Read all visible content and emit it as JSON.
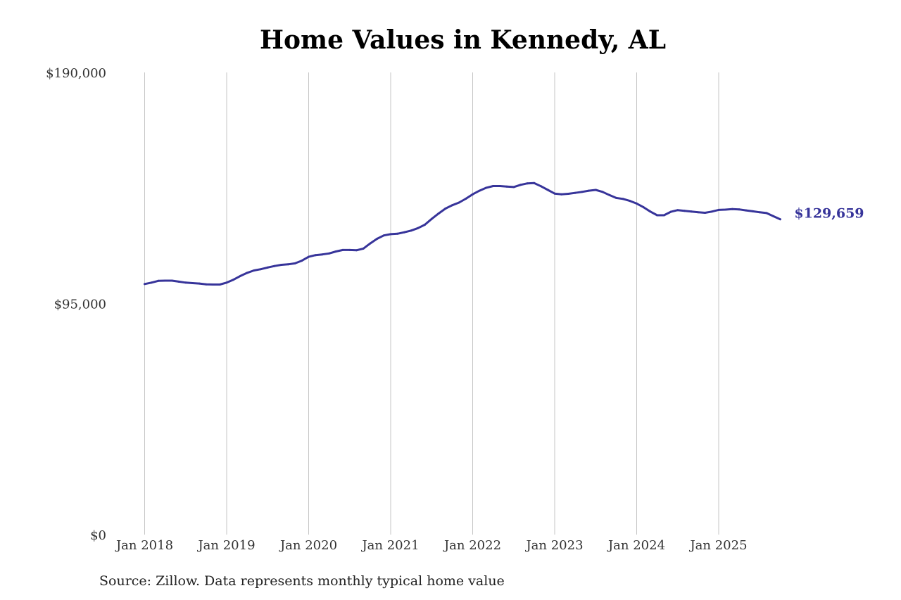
{
  "chart_data": {
    "type": "line",
    "title": "Home Values in Kennedy, AL",
    "source": "Source: Zillow. Data represents monthly typical home value",
    "xlabel": "",
    "ylabel": "",
    "ylim": [
      0,
      190000
    ],
    "y_ticks": [
      {
        "value": 0,
        "label": "$0"
      },
      {
        "value": 95000,
        "label": "$95,000"
      },
      {
        "value": 190000,
        "label": "$190,000"
      }
    ],
    "x_ticks": [
      {
        "value": "2018-01",
        "label": "Jan 2018"
      },
      {
        "value": "2019-01",
        "label": "Jan 2019"
      },
      {
        "value": "2020-01",
        "label": "Jan 2020"
      },
      {
        "value": "2021-01",
        "label": "Jan 2021"
      },
      {
        "value": "2022-01",
        "label": "Jan 2022"
      },
      {
        "value": "2023-01",
        "label": "Jan 2023"
      },
      {
        "value": "2024-01",
        "label": "Jan 2024"
      },
      {
        "value": "2025-01",
        "label": "Jan 2025"
      }
    ],
    "x_grid": true,
    "end_label": "$129,659",
    "series": [
      {
        "color": "#37349a",
        "x": [
          "2018-01",
          "2018-02",
          "2018-03",
          "2018-04",
          "2018-05",
          "2018-06",
          "2018-07",
          "2018-08",
          "2018-09",
          "2018-10",
          "2018-11",
          "2018-12",
          "2019-01",
          "2019-02",
          "2019-03",
          "2019-04",
          "2019-05",
          "2019-06",
          "2019-07",
          "2019-08",
          "2019-09",
          "2019-10",
          "2019-11",
          "2019-12",
          "2020-01",
          "2020-02",
          "2020-03",
          "2020-04",
          "2020-05",
          "2020-06",
          "2020-07",
          "2020-08",
          "2020-09",
          "2020-10",
          "2020-11",
          "2020-12",
          "2021-01",
          "2021-02",
          "2021-03",
          "2021-04",
          "2021-05",
          "2021-06",
          "2021-07",
          "2021-08",
          "2021-09",
          "2021-10",
          "2021-11",
          "2021-12",
          "2022-01",
          "2022-02",
          "2022-03",
          "2022-04",
          "2022-05",
          "2022-06",
          "2022-07",
          "2022-08",
          "2022-09",
          "2022-10",
          "2022-11",
          "2022-12",
          "2023-01",
          "2023-02",
          "2023-03",
          "2023-04",
          "2023-05",
          "2023-06",
          "2023-07",
          "2023-08",
          "2023-09",
          "2023-10",
          "2023-11",
          "2023-12",
          "2024-01",
          "2024-02",
          "2024-03",
          "2024-04",
          "2024-05",
          "2024-06",
          "2024-07",
          "2024-08",
          "2024-09",
          "2024-10",
          "2024-11",
          "2024-12",
          "2025-01",
          "2025-02",
          "2025-03",
          "2025-04",
          "2025-05",
          "2025-06",
          "2025-07",
          "2025-08",
          "2025-09",
          "2025-10"
        ],
        "values": [
          103000,
          103600,
          104300,
          104400,
          104400,
          104000,
          103600,
          103400,
          103200,
          102900,
          102800,
          102800,
          103600,
          104800,
          106300,
          107600,
          108600,
          109100,
          109800,
          110400,
          110900,
          111100,
          111500,
          112600,
          114200,
          114900,
          115200,
          115600,
          116400,
          117000,
          117000,
          116900,
          117600,
          119700,
          121600,
          123000,
          123500,
          123700,
          124300,
          125000,
          126000,
          127400,
          129800,
          132000,
          134000,
          135400,
          136500,
          138100,
          139900,
          141400,
          142600,
          143300,
          143300,
          143100,
          142900,
          143800,
          144400,
          144500,
          143200,
          141700,
          140200,
          139900,
          140100,
          140500,
          140900,
          141400,
          141700,
          140900,
          139600,
          138400,
          138000,
          137200,
          136100,
          134600,
          132800,
          131300,
          131300,
          132700,
          133400,
          133100,
          132800,
          132500,
          132300,
          132800,
          133500,
          133600,
          133800,
          133700,
          133300,
          132900,
          132500,
          132200,
          130900,
          129659
        ]
      }
    ]
  }
}
